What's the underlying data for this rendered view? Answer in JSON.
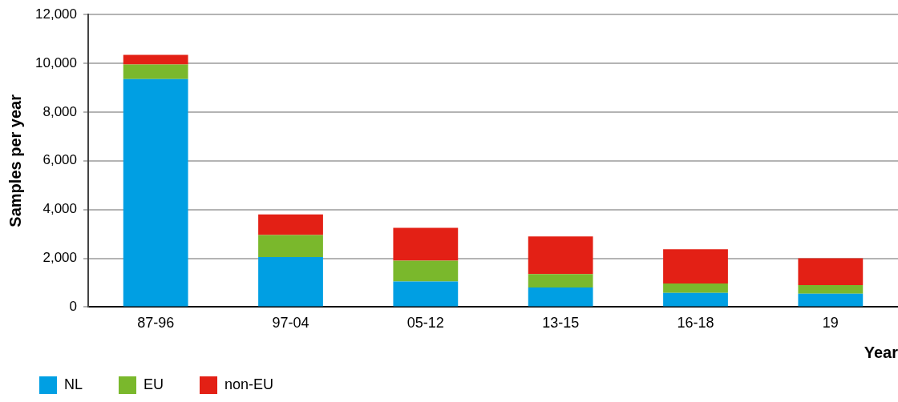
{
  "chart_data": {
    "type": "bar",
    "stacked": true,
    "xlabel": "Year",
    "ylabel": "Samples per year",
    "categories": [
      "87-96",
      "97-04",
      "05-12",
      "13-15",
      "16-18",
      "19"
    ],
    "series": [
      {
        "name": "NL",
        "color": "#009fe3",
        "values": [
          9350,
          2050,
          1050,
          800,
          580,
          550
        ]
      },
      {
        "name": "EU",
        "color": "#7ab82c",
        "values": [
          600,
          900,
          850,
          550,
          390,
          350
        ]
      },
      {
        "name": "non-EU",
        "color": "#e32015",
        "values": [
          400,
          850,
          1350,
          1550,
          1400,
          1100
        ]
      }
    ],
    "ylim": [
      0,
      12000
    ],
    "yticks": [
      {
        "value": 0,
        "label": "0"
      },
      {
        "value": 2000,
        "label": "2,000"
      },
      {
        "value": 4000,
        "label": "4,000"
      },
      {
        "value": 6000,
        "label": "6,000"
      },
      {
        "value": 8000,
        "label": "8,000"
      },
      {
        "value": 10000,
        "label": "10,000"
      },
      {
        "value": 12000,
        "label": "12,000"
      }
    ],
    "grid": "y",
    "legend": "bottom left"
  }
}
